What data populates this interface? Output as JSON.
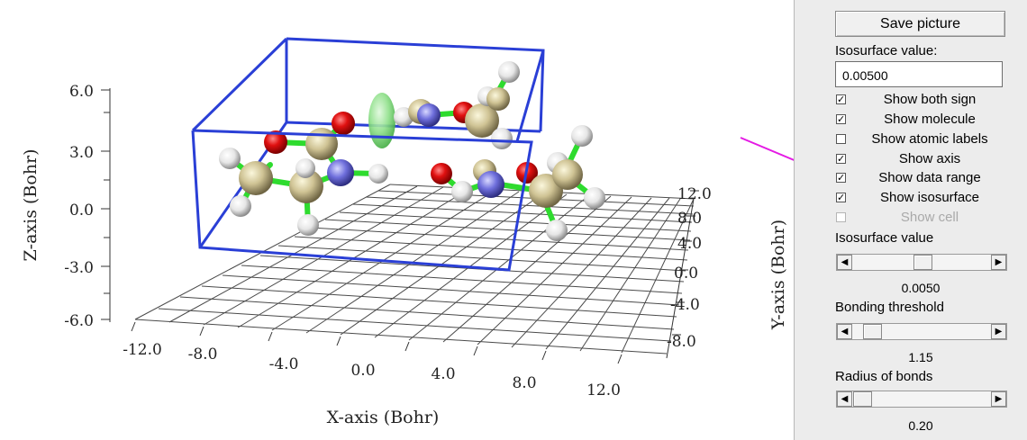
{
  "plot": {
    "z_axis_label": "Z-axis (Bohr)",
    "x_axis_label": "X-axis (Bohr)",
    "y_axis_label": "Y-axis (Bohr)",
    "z_ticks": [
      "6.0",
      "3.0",
      "0.0",
      "-3.0",
      "-6.0"
    ],
    "x_ticks": [
      "-12.0",
      "-8.0",
      "-4.0",
      "0.0",
      "4.0",
      "8.0",
      "12.0"
    ],
    "y_ticks": [
      "12.0",
      "8.0",
      "4.0",
      "0.0",
      "-4.0",
      "-8.0"
    ],
    "box_color": "#2a3fd6",
    "bond_color": "#2edb2e",
    "isosurface_color": "#7ddf7d",
    "annotation_arrow_color": "#e41ae4"
  },
  "panel": {
    "save_picture_label": "Save picture",
    "isosurface_value_label": "Isosurface value:",
    "isosurface_value_input": "0.00500",
    "checkboxes": [
      {
        "label": "Show both sign",
        "checked": true,
        "enabled": true
      },
      {
        "label": "Show molecule",
        "checked": true,
        "enabled": true
      },
      {
        "label": "Show atomic labels",
        "checked": false,
        "enabled": true
      },
      {
        "label": "Show axis",
        "checked": true,
        "enabled": true
      },
      {
        "label": "Show data range",
        "checked": true,
        "enabled": true
      },
      {
        "label": "Show isosurface",
        "checked": true,
        "enabled": true
      },
      {
        "label": "Show cell",
        "checked": false,
        "enabled": false
      }
    ],
    "isosurface_slider_label": "Isosurface value",
    "isosurface_slider_value": "0.0050",
    "bonding_threshold_label": "Bonding threshold",
    "bonding_threshold_value": "1.15",
    "radius_of_bonds_label": "Radius of bonds",
    "radius_of_bonds_value": "0.20",
    "slider_left_glyph": "◀",
    "slider_right_glyph": "▶",
    "check_glyph": "✓"
  }
}
